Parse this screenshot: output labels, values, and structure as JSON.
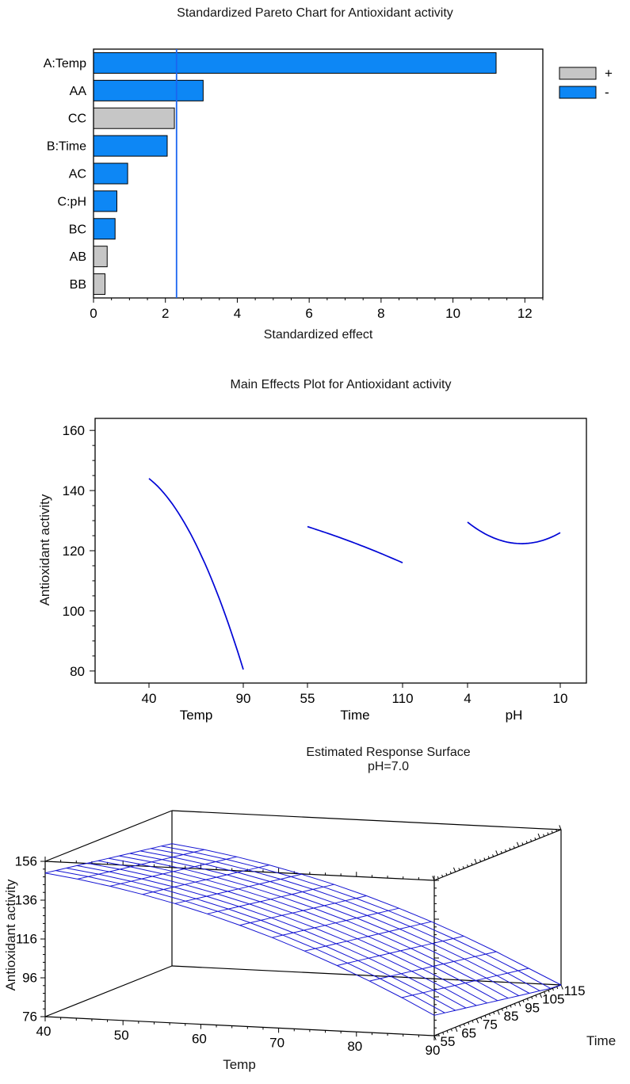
{
  "chart_data": [
    {
      "type": "bar",
      "orientation": "horizontal",
      "title": "Standardized Pareto Chart for Antioxidant activity",
      "xlabel": "Standardized effect",
      "xlim": [
        0,
        12.5
      ],
      "x_ticks": [
        0,
        2,
        4,
        6,
        8,
        10,
        12
      ],
      "x_minor_step": 0.5,
      "reference_line": 2.31,
      "categories": [
        "A:Temp",
        "AA",
        "CC",
        "B:Time",
        "AC",
        "C:pH",
        "BC",
        "AB",
        "BB"
      ],
      "values": [
        11.2,
        3.05,
        2.25,
        2.05,
        0.95,
        0.65,
        0.6,
        0.38,
        0.32
      ],
      "signs": [
        "-",
        "-",
        "+",
        "-",
        "-",
        "-",
        "-",
        "+",
        "+"
      ],
      "legend": [
        {
          "label": "+",
          "color": "#c6c6c6"
        },
        {
          "label": "-",
          "color": "#0d87f5"
        }
      ],
      "colors": {
        "plus": "#c6c6c6",
        "minus": "#0d87f5",
        "reference": "#1b66f0",
        "frame": "#000000"
      }
    },
    {
      "type": "line",
      "title": "Main Effects Plot for Antioxidant activity",
      "ylabel": "Antioxidant activity",
      "ylim": [
        76,
        164
      ],
      "y_ticks": [
        80,
        100,
        120,
        140,
        160
      ],
      "y_minor_step": 5,
      "line_color": "#0005d6",
      "factors": [
        {
          "name": "Temp",
          "levels": [
            "40",
            "90"
          ],
          "curve": [
            144,
            122,
            80.5
          ]
        },
        {
          "name": "Time",
          "levels": [
            "55",
            "110"
          ],
          "curve": [
            128,
            122.5,
            116
          ]
        },
        {
          "name": "pH",
          "levels": [
            "4",
            "10"
          ],
          "curve": [
            129.5,
            122.5,
            126
          ]
        }
      ]
    },
    {
      "type": "surface",
      "title": "Estimated Response Surface",
      "subtitle": "pH=7.0",
      "xlabel": "Temp",
      "ylabel": "Time",
      "zlabel": "Antioxidant activity",
      "x_range": [
        40,
        90
      ],
      "y_range": [
        55,
        115
      ],
      "zlim": [
        76,
        156
      ],
      "x_ticks": [
        40,
        50,
        60,
        70,
        80,
        90
      ],
      "y_ticks": [
        55,
        65,
        75,
        85,
        95,
        105,
        115
      ],
      "z_ticks": [
        76,
        96,
        116,
        136,
        156
      ],
      "mesh_color": "#1414d2",
      "model": {
        "intercept": 122.5,
        "temp_lin": -31.75,
        "temp_quad": -9.75,
        "time_lin": -5.5,
        "time_quad": 0
      }
    }
  ]
}
